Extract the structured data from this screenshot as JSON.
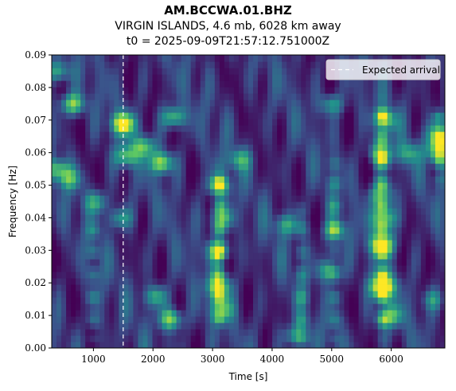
{
  "header": {
    "title": "AM.BCCWA.01.BHZ",
    "subtitle": "VIRGIN ISLANDS, 4.6 mb, 6028 km away",
    "t0_line": "t0 = 2025-09-09T21:57:12.751000Z"
  },
  "chart_data": {
    "type": "heatmap",
    "title": "AM.BCCWA.01.BHZ",
    "xlabel": "Time [s]",
    "ylabel": "Frequency [Hz]",
    "xlim": [
      300,
      6900
    ],
    "ylim": [
      0,
      0.09
    ],
    "x_ticks": [
      1000,
      2000,
      3000,
      4000,
      5000,
      6000
    ],
    "x_tick_labels": [
      "1000",
      "2000",
      "3000",
      "4000",
      "5000",
      "6000"
    ],
    "y_ticks": [
      0,
      0.01,
      0.02,
      0.03,
      0.04,
      0.05,
      0.06,
      0.07,
      0.08,
      0.09
    ],
    "y_tick_labels": [
      "0.00",
      "0.01",
      "0.02",
      "0.03",
      "0.04",
      "0.05",
      "0.06",
      "0.07",
      "0.08",
      "0.09"
    ],
    "colormap": "viridis",
    "expected_arrival": {
      "x": 1500,
      "label": "Expected arrival",
      "color": "#ffffff",
      "style": "dashed"
    },
    "legend": {
      "entries": [
        "Expected arrival"
      ],
      "placement": "top-right"
    },
    "grid": false,
    "hotspots": [
      {
        "x": 5850,
        "y": 0.019,
        "v": 1.0
      },
      {
        "x": 5850,
        "y": 0.032,
        "v": 0.85
      },
      {
        "x": 5870,
        "y": 0.04,
        "v": 0.7
      },
      {
        "x": 5830,
        "y": 0.047,
        "v": 0.55
      },
      {
        "x": 5820,
        "y": 0.06,
        "v": 0.6
      },
      {
        "x": 5900,
        "y": 0.07,
        "v": 0.5
      },
      {
        "x": 6000,
        "y": 0.01,
        "v": 0.5
      },
      {
        "x": 3100,
        "y": 0.019,
        "v": 0.7
      },
      {
        "x": 3100,
        "y": 0.03,
        "v": 0.6
      },
      {
        "x": 3150,
        "y": 0.04,
        "v": 0.55
      },
      {
        "x": 3100,
        "y": 0.05,
        "v": 0.55
      },
      {
        "x": 3150,
        "y": 0.012,
        "v": 0.5
      },
      {
        "x": 1500,
        "y": 0.069,
        "v": 0.9
      },
      {
        "x": 1550,
        "y": 0.059,
        "v": 0.55
      },
      {
        "x": 2150,
        "y": 0.057,
        "v": 0.75
      },
      {
        "x": 1850,
        "y": 0.062,
        "v": 0.55
      },
      {
        "x": 2350,
        "y": 0.071,
        "v": 0.6
      },
      {
        "x": 650,
        "y": 0.075,
        "v": 0.7
      },
      {
        "x": 400,
        "y": 0.085,
        "v": 0.5
      },
      {
        "x": 400,
        "y": 0.055,
        "v": 0.55
      },
      {
        "x": 600,
        "y": 0.052,
        "v": 0.45
      },
      {
        "x": 1050,
        "y": 0.045,
        "v": 0.45
      },
      {
        "x": 2300,
        "y": 0.009,
        "v": 0.7
      },
      {
        "x": 2050,
        "y": 0.016,
        "v": 0.5
      },
      {
        "x": 1450,
        "y": 0.04,
        "v": 0.45
      },
      {
        "x": 4250,
        "y": 0.038,
        "v": 0.45
      },
      {
        "x": 3450,
        "y": 0.058,
        "v": 0.45
      },
      {
        "x": 4400,
        "y": 0.004,
        "v": 0.45
      },
      {
        "x": 4950,
        "y": 0.024,
        "v": 0.5
      },
      {
        "x": 5050,
        "y": 0.036,
        "v": 0.45
      },
      {
        "x": 6800,
        "y": 0.061,
        "v": 0.75
      },
      {
        "x": 6800,
        "y": 0.066,
        "v": 0.55
      },
      {
        "x": 5000,
        "y": 0.075,
        "v": 0.45
      },
      {
        "x": 6300,
        "y": 0.06,
        "v": 0.4
      },
      {
        "x": 6700,
        "y": 0.015,
        "v": 0.35
      }
    ],
    "ridges": [
      {
        "x": 5850,
        "y_from": 0.008,
        "y_to": 0.072,
        "v": 0.5
      },
      {
        "x": 3110,
        "y_from": 0.01,
        "y_to": 0.052,
        "v": 0.4
      },
      {
        "x": 1000,
        "y_from": 0.005,
        "y_to": 0.035,
        "v": 0.28
      },
      {
        "x": 4500,
        "y_from": 0.005,
        "y_to": 0.04,
        "v": 0.25
      },
      {
        "x": 5050,
        "y_from": 0.005,
        "y_to": 0.055,
        "v": 0.28
      },
      {
        "x": 6800,
        "y_from": 0.055,
        "y_to": 0.07,
        "v": 0.45
      }
    ]
  }
}
